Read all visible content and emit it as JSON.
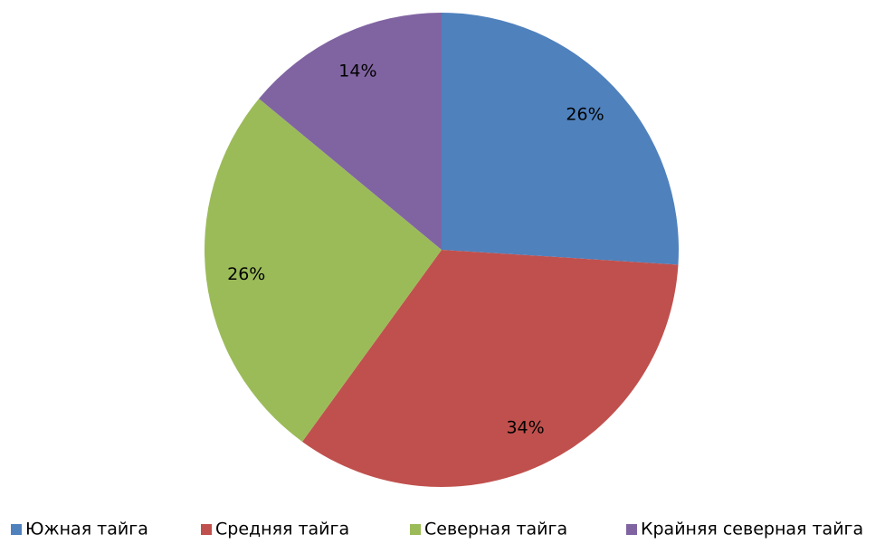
{
  "chart_data": {
    "type": "pie",
    "categories": [
      "Южная тайга",
      "Средняя тайга",
      "Северная тайга",
      "Крайняя северная тайга"
    ],
    "values": [
      26,
      34,
      26,
      14
    ],
    "value_labels": [
      "26%",
      "34%",
      "26%",
      "14%"
    ],
    "colors": [
      "#4f81bd",
      "#c0504d",
      "#9bbb59",
      "#8064a2"
    ],
    "legend": "bottom"
  }
}
